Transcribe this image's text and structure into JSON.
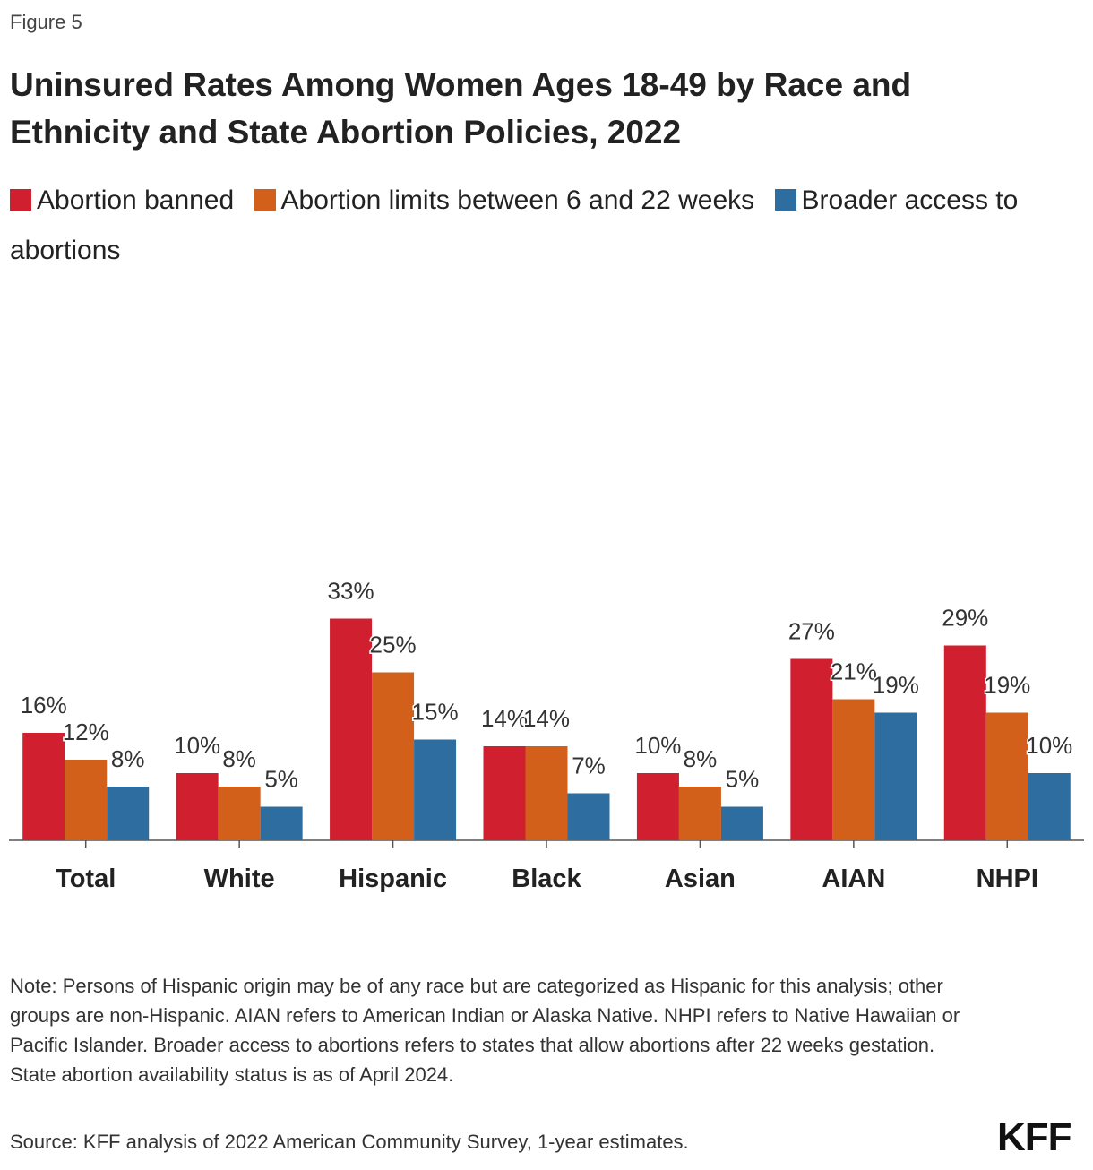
{
  "figure_label": "Figure 5",
  "chart_data": {
    "type": "bar",
    "title": "Uninsured Rates Among Women Ages 18-49 by Race and Ethnicity and State Abortion Policies, 2022",
    "categories": [
      "Total",
      "White",
      "Hispanic",
      "Black",
      "Asian",
      "AIAN",
      "NHPI"
    ],
    "series": [
      {
        "name": "Abortion banned",
        "color": "#d01f2e",
        "values": [
          16,
          10,
          33,
          14,
          10,
          27,
          29
        ],
        "value_labels": [
          "16%",
          "10%",
          "33%",
          "14%",
          "10%",
          "27%",
          "29%"
        ]
      },
      {
        "name": "Abortion limits between 6 and 22 weeks",
        "color": "#d2601a",
        "values": [
          12,
          8,
          25,
          14,
          8,
          21,
          19
        ],
        "value_labels": [
          "12%",
          "8%",
          "25%",
          "14%",
          "8%",
          "21%",
          "19%"
        ]
      },
      {
        "name": "Broader access to abortions",
        "color": "#2e6da0",
        "values": [
          8,
          5,
          15,
          7,
          5,
          19,
          10
        ],
        "value_labels": [
          "8%",
          "5%",
          "15%",
          "7%",
          "5%",
          "19%",
          "10%"
        ]
      }
    ],
    "legend_position": "top"
  },
  "note": "Note: Persons of Hispanic origin may be of any race but are categorized as Hispanic for this analysis; other groups are non-Hispanic. AIAN refers to American Indian or Alaska Native. NHPI refers to Native Hawaiian or Pacific Islander. Broader access to abortions refers to states that allow abortions after 22 weeks gestation. State abortion availability status is as of April 2024.",
  "source": "Source: KFF analysis of 2022 American Community Survey, 1-year estimates.",
  "logo": "KFF"
}
